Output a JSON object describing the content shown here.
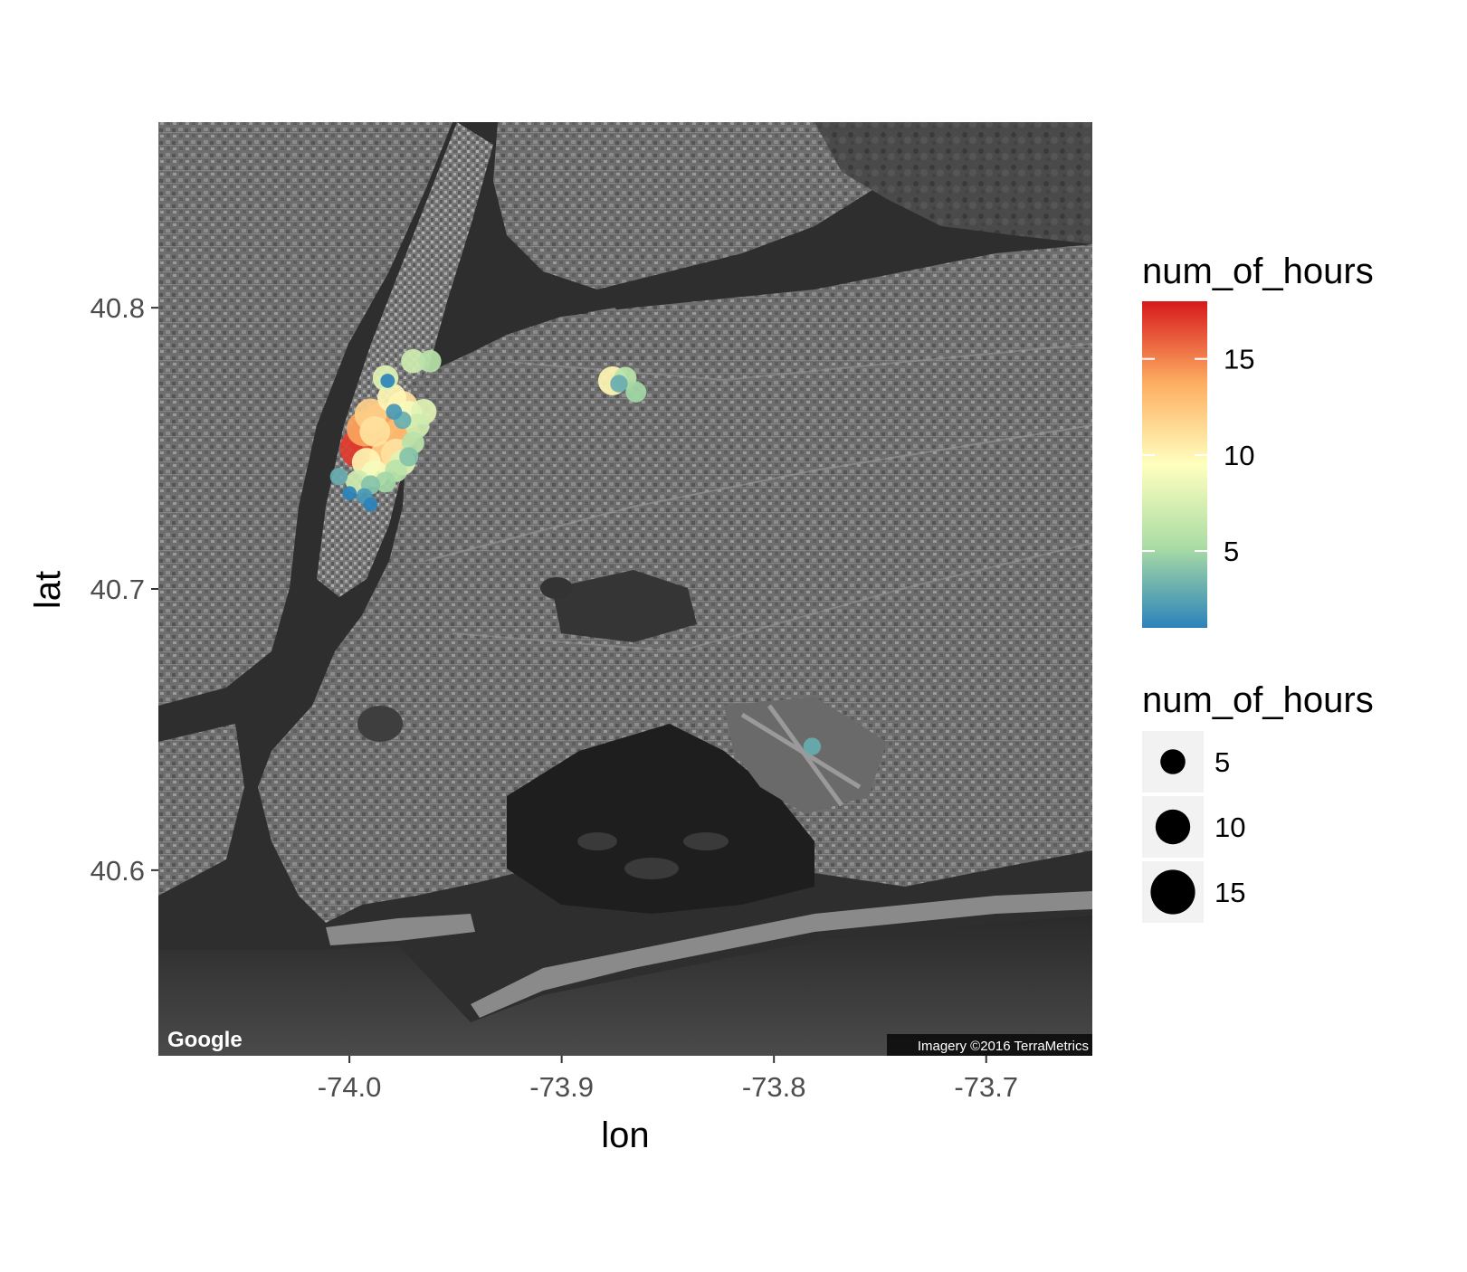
{
  "chart_data": {
    "type": "scatter",
    "basemap": "satellite",
    "xlabel": "lon",
    "ylabel": "lat",
    "xlim": [
      -74.09,
      -73.65
    ],
    "ylim": [
      40.534,
      40.866
    ],
    "xticks": [
      {
        "value": -74.0,
        "label": "-74.0"
      },
      {
        "value": -73.9,
        "label": "-73.9"
      },
      {
        "value": -73.8,
        "label": "-73.8"
      },
      {
        "value": -73.7,
        "label": "-73.7"
      }
    ],
    "yticks": [
      {
        "value": 40.6,
        "label": "40.6"
      },
      {
        "value": 40.7,
        "label": "40.7"
      },
      {
        "value": 40.8,
        "label": "40.8"
      }
    ],
    "grid": false,
    "legend_position": "right",
    "attribution": {
      "logo": "Google",
      "imagery": "Imagery ©2016 TerraMetrics"
    },
    "color_legend": {
      "title": "num_of_hours",
      "min": 1,
      "max": 18,
      "ticks": [
        {
          "value": 5,
          "label": "5"
        },
        {
          "value": 10,
          "label": "10"
        },
        {
          "value": 15,
          "label": "15"
        }
      ],
      "palette": [
        "#2b83ba",
        "#abdda4",
        "#ffffbf",
        "#fdae61",
        "#d7191c"
      ]
    },
    "size_legend": {
      "title": "num_of_hours",
      "entries": [
        {
          "value": 5,
          "label": "5"
        },
        {
          "value": 10,
          "label": "10"
        },
        {
          "value": 15,
          "label": "15"
        }
      ]
    },
    "points": [
      {
        "lon": -73.985,
        "lat": 40.752,
        "hours": 16
      },
      {
        "lon": -73.99,
        "lat": 40.754,
        "hours": 18
      },
      {
        "lon": -73.98,
        "lat": 40.758,
        "hours": 15
      },
      {
        "lon": -73.995,
        "lat": 40.75,
        "hours": 17
      },
      {
        "lon": -73.975,
        "lat": 40.756,
        "hours": 13
      },
      {
        "lon": -73.985,
        "lat": 40.76,
        "hours": 14
      },
      {
        "lon": -73.983,
        "lat": 40.747,
        "hours": 12
      },
      {
        "lon": -73.978,
        "lat": 40.748,
        "hours": 11
      },
      {
        "lon": -73.992,
        "lat": 40.745,
        "hours": 10
      },
      {
        "lon": -73.972,
        "lat": 40.762,
        "hours": 9
      },
      {
        "lon": -73.968,
        "lat": 40.758,
        "hours": 7
      },
      {
        "lon": -73.965,
        "lat": 40.763,
        "hours": 8
      },
      {
        "lon": -73.975,
        "lat": 40.765,
        "hours": 11
      },
      {
        "lon": -73.98,
        "lat": 40.768,
        "hours": 10
      },
      {
        "lon": -73.983,
        "lat": 40.775,
        "hours": 8
      },
      {
        "lon": -73.97,
        "lat": 40.781,
        "hours": 7
      },
      {
        "lon": -73.962,
        "lat": 40.781,
        "hours": 6
      },
      {
        "lon": -73.97,
        "lat": 40.752,
        "hours": 6
      },
      {
        "lon": -73.975,
        "lat": 40.745,
        "hours": 8
      },
      {
        "lon": -73.988,
        "lat": 40.741,
        "hours": 9
      },
      {
        "lon": -73.996,
        "lat": 40.738,
        "hours": 7
      },
      {
        "lon": -74.005,
        "lat": 40.74,
        "hours": 3
      },
      {
        "lon": -73.99,
        "lat": 40.737,
        "hours": 4
      },
      {
        "lon": -73.983,
        "lat": 40.738,
        "hours": 5
      },
      {
        "lon": -73.978,
        "lat": 40.742,
        "hours": 6
      },
      {
        "lon": -73.972,
        "lat": 40.747,
        "hours": 4
      },
      {
        "lon": -73.975,
        "lat": 40.76,
        "hours": 3
      },
      {
        "lon": -73.99,
        "lat": 40.762,
        "hours": 12
      },
      {
        "lon": -73.993,
        "lat": 40.733,
        "hours": 2
      },
      {
        "lon": -74.0,
        "lat": 40.734,
        "hours": 1
      },
      {
        "lon": -73.99,
        "lat": 40.73,
        "hours": 1
      },
      {
        "lon": -73.982,
        "lat": 40.774,
        "hours": 1
      },
      {
        "lon": -73.979,
        "lat": 40.763,
        "hours": 2
      },
      {
        "lon": -73.988,
        "lat": 40.756,
        "hours": 11
      },
      {
        "lon": -73.993,
        "lat": 40.757,
        "hours": 14
      },
      {
        "lon": -73.876,
        "lat": 40.774,
        "hours": 10
      },
      {
        "lon": -73.87,
        "lat": 40.775,
        "hours": 6
      },
      {
        "lon": -73.873,
        "lat": 40.773,
        "hours": 3
      },
      {
        "lon": -73.865,
        "lat": 40.77,
        "hours": 5
      },
      {
        "lon": -73.782,
        "lat": 40.644,
        "hours": 3
      }
    ]
  }
}
